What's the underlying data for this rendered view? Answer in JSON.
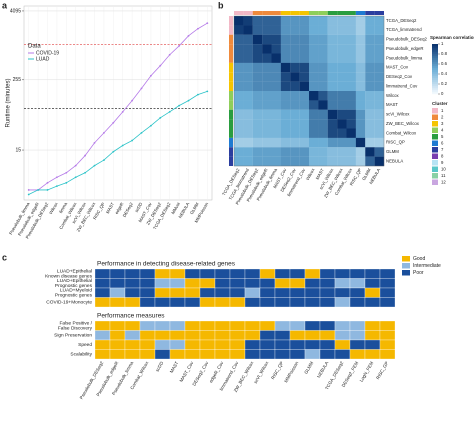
{
  "chart_data": [
    {
      "type": "line",
      "panel_label": "a",
      "ylabel": "Runtime (minutes)",
      "log_y": true,
      "grid": true,
      "ylim": [
        2,
        5000
      ],
      "yticks": [
        15,
        255,
        4095
      ],
      "legend_title": "Data",
      "legend": "top-left",
      "categories": [
        "Pseudobulk_limma",
        "Pseudobulk_edgeR",
        "Pseudobulk_DESeq2",
        "Wilcox",
        "limma",
        "Combat_Wilcox",
        "scVI_Wilcox",
        "ZW_BEC_Wilcox",
        "RISC_QP",
        "MAST",
        "edgeR",
        "DESeq2",
        "scDD",
        "MAST_Cov",
        "ZW_DESeq2",
        "TCGA_DESeq2",
        "MMvst",
        "NEBULA",
        "GLMM",
        "MMPoisson"
      ],
      "series": [
        {
          "name": "COVID-19",
          "color": "#b57be8",
          "values": [
            3,
            3,
            4,
            5,
            6,
            8,
            12,
            20,
            30,
            45,
            70,
            110,
            180,
            300,
            450,
            700,
            1000,
            1500,
            2000,
            2500
          ]
        },
        {
          "name": "LUAD",
          "color": "#2cc3c8",
          "values": [
            2.5,
            3,
            3,
            3.5,
            4,
            5,
            6,
            8,
            10,
            14,
            18,
            22,
            30,
            40,
            55,
            70,
            90,
            110,
            140,
            160
          ]
        }
      ],
      "hlines": [
        {
          "value": 1050,
          "color": "#e04040"
        },
        {
          "value": 80,
          "color": "#333333"
        }
      ]
    },
    {
      "type": "heatmap",
      "panel_label": "b",
      "colorbar_label": "Spearman correlation",
      "zlim": [
        0,
        1
      ],
      "zticks": [
        0,
        0.2,
        0.4,
        0.6,
        0.8,
        1
      ],
      "colors": [
        "#f7fbff",
        "#6baed6",
        "#08306b"
      ],
      "cluster_title": "Cluster",
      "cluster_labels": [
        1,
        2,
        3,
        4,
        5,
        6,
        7,
        8,
        9,
        10,
        11,
        12
      ],
      "cluster_colors": [
        "#f2b8c6",
        "#ef8a3c",
        "#f5c400",
        "#8fce5a",
        "#2a9d3f",
        "#1f7ad1",
        "#2b3e9f",
        "#7a3fb0",
        "#b6e3f4",
        "#58c7c9",
        "#89d1a5",
        "#c9a6e0"
      ],
      "categories": [
        "TCGA_DESeq2",
        "TCGA_limmatrend",
        "Pseudobulk_DESeq2",
        "Pseudobulk_edgeR",
        "Pseudobulk_limma",
        "MAST_Cov",
        "DESeq2_Cov",
        "limmatrend_Cov",
        "Wilcox",
        "MAST",
        "scVI_Wilcox",
        "ZW_BEC_Wilcox",
        "Combat_Wilcox",
        "RISC_QP",
        "GLMM",
        "NEBULA"
      ],
      "clusters": [
        1,
        1,
        2,
        2,
        2,
        3,
        3,
        3,
        4,
        4,
        5,
        5,
        5,
        6,
        7,
        7
      ],
      "matrix": [
        [
          1,
          0.95,
          0.8,
          0.8,
          0.8,
          0.6,
          0.6,
          0.6,
          0.5,
          0.5,
          0.4,
          0.4,
          0.4,
          0.3,
          0.5,
          0.5
        ],
        [
          0.95,
          1,
          0.8,
          0.8,
          0.8,
          0.6,
          0.6,
          0.6,
          0.5,
          0.5,
          0.4,
          0.4,
          0.4,
          0.3,
          0.5,
          0.5
        ],
        [
          0.8,
          0.8,
          1,
          0.9,
          0.9,
          0.65,
          0.65,
          0.65,
          0.55,
          0.55,
          0.45,
          0.45,
          0.45,
          0.35,
          0.55,
          0.55
        ],
        [
          0.8,
          0.8,
          0.9,
          1,
          0.9,
          0.65,
          0.65,
          0.65,
          0.55,
          0.55,
          0.45,
          0.45,
          0.45,
          0.35,
          0.55,
          0.55
        ],
        [
          0.8,
          0.8,
          0.9,
          0.9,
          1,
          0.65,
          0.65,
          0.65,
          0.55,
          0.55,
          0.45,
          0.45,
          0.45,
          0.35,
          0.55,
          0.55
        ],
        [
          0.6,
          0.6,
          0.65,
          0.65,
          0.65,
          1,
          0.9,
          0.9,
          0.6,
          0.6,
          0.5,
          0.5,
          0.5,
          0.4,
          0.6,
          0.6
        ],
        [
          0.6,
          0.6,
          0.65,
          0.65,
          0.65,
          0.9,
          1,
          0.9,
          0.6,
          0.6,
          0.5,
          0.5,
          0.5,
          0.4,
          0.6,
          0.6
        ],
        [
          0.6,
          0.6,
          0.65,
          0.65,
          0.65,
          0.9,
          0.9,
          1,
          0.6,
          0.6,
          0.5,
          0.5,
          0.5,
          0.4,
          0.6,
          0.6
        ],
        [
          0.5,
          0.5,
          0.55,
          0.55,
          0.55,
          0.6,
          0.6,
          0.6,
          1,
          0.85,
          0.7,
          0.7,
          0.7,
          0.5,
          0.45,
          0.45
        ],
        [
          0.5,
          0.5,
          0.55,
          0.55,
          0.55,
          0.6,
          0.6,
          0.6,
          0.85,
          1,
          0.7,
          0.7,
          0.7,
          0.5,
          0.45,
          0.45
        ],
        [
          0.4,
          0.4,
          0.45,
          0.45,
          0.45,
          0.5,
          0.5,
          0.5,
          0.7,
          0.7,
          1,
          0.9,
          0.9,
          0.6,
          0.4,
          0.4
        ],
        [
          0.4,
          0.4,
          0.45,
          0.45,
          0.45,
          0.5,
          0.5,
          0.5,
          0.7,
          0.7,
          0.9,
          1,
          0.9,
          0.6,
          0.4,
          0.4
        ],
        [
          0.4,
          0.4,
          0.45,
          0.45,
          0.45,
          0.5,
          0.5,
          0.5,
          0.7,
          0.7,
          0.9,
          0.9,
          1,
          0.6,
          0.4,
          0.4
        ],
        [
          0.3,
          0.3,
          0.35,
          0.35,
          0.35,
          0.4,
          0.4,
          0.4,
          0.5,
          0.5,
          0.6,
          0.6,
          0.6,
          1,
          0.3,
          0.3
        ],
        [
          0.5,
          0.5,
          0.55,
          0.55,
          0.55,
          0.6,
          0.6,
          0.6,
          0.45,
          0.45,
          0.4,
          0.4,
          0.4,
          0.3,
          1,
          0.8
        ],
        [
          0.5,
          0.5,
          0.55,
          0.55,
          0.55,
          0.6,
          0.6,
          0.6,
          0.45,
          0.45,
          0.4,
          0.4,
          0.4,
          0.3,
          0.8,
          1
        ]
      ]
    },
    {
      "type": "tile",
      "panel_label": "c",
      "levels": [
        "Good",
        "Intermediate",
        "Poor"
      ],
      "level_colors": [
        "#f5b800",
        "#8fb8e0",
        "#1a4f9c"
      ],
      "categories": [
        "Pseudobulk_DESeq2",
        "Pseudobulk_edgeR",
        "Pseudobulk_limma",
        "Combat_Wilcox",
        "scDD",
        "MAST",
        "MAST_Cov",
        "DESeq2_Cov",
        "edgeR_Cov",
        "limmatrend_Cov",
        "ZW_BEC_Wilcox",
        "scVI_Wilcox",
        "RISC_QP",
        "MMPoisson",
        "GLMM",
        "NEBULA",
        "TCGA_DESeq2",
        "DESeq2_FEM",
        "LogN_FEM",
        "RISC_GP"
      ],
      "sections": [
        {
          "title": "Performance in detecting disease-related genes",
          "rows": [
            {
              "label": [
                "LUAD+Epithelial",
                "Known disease genes"
              ],
              "values": [
                2,
                2,
                2,
                2,
                0,
                0,
                2,
                2,
                2,
                2,
                2,
                0,
                2,
                2,
                0,
                2,
                2,
                2,
                2,
                2
              ]
            },
            {
              "label": [
                "LUAD+Epithelial",
                "Prognostic genes"
              ],
              "values": [
                2,
                2,
                2,
                2,
                1,
                1,
                0,
                0,
                2,
                2,
                2,
                2,
                0,
                0,
                2,
                2,
                1,
                1,
                2,
                2
              ]
            },
            {
              "label": [
                "LUAD+Myeloid",
                "Prognostic genes"
              ],
              "values": [
                2,
                1,
                2,
                2,
                0,
                0,
                0,
                2,
                2,
                2,
                1,
                2,
                2,
                2,
                2,
                2,
                2,
                2,
                0,
                2
              ]
            },
            {
              "label": [
                "COVID-19+Monocyte"
              ],
              "values": [
                0,
                0,
                0,
                2,
                2,
                2,
                2,
                0,
                0,
                0,
                2,
                2,
                2,
                2,
                2,
                2,
                1,
                2,
                2,
                2
              ]
            }
          ]
        },
        {
          "title": "Performance measures",
          "rows": [
            {
              "label": [
                "False Positive /",
                "False Discovery"
              ],
              "values": [
                0,
                0,
                0,
                1,
                1,
                1,
                0,
                0,
                0,
                0,
                0,
                0,
                1,
                1,
                2,
                2,
                1,
                1,
                0,
                0
              ]
            },
            {
              "label": [
                "Sign Preservation"
              ],
              "values": [
                1,
                0,
                1,
                0,
                0,
                0,
                0,
                0,
                0,
                0,
                0,
                2,
                2,
                0,
                0,
                0,
                1,
                1,
                0,
                0
              ]
            },
            {
              "label": [
                "Speed"
              ],
              "values": [
                0,
                0,
                0,
                0,
                1,
                1,
                0,
                0,
                0,
                0,
                2,
                2,
                2,
                2,
                2,
                2,
                0,
                2,
                2,
                0
              ]
            },
            {
              "label": [
                "Scalability"
              ],
              "values": [
                0,
                0,
                0,
                0,
                2,
                0,
                0,
                0,
                0,
                0,
                2,
                2,
                2,
                2,
                1,
                2,
                2,
                0,
                0,
                0
              ]
            }
          ]
        }
      ]
    }
  ]
}
